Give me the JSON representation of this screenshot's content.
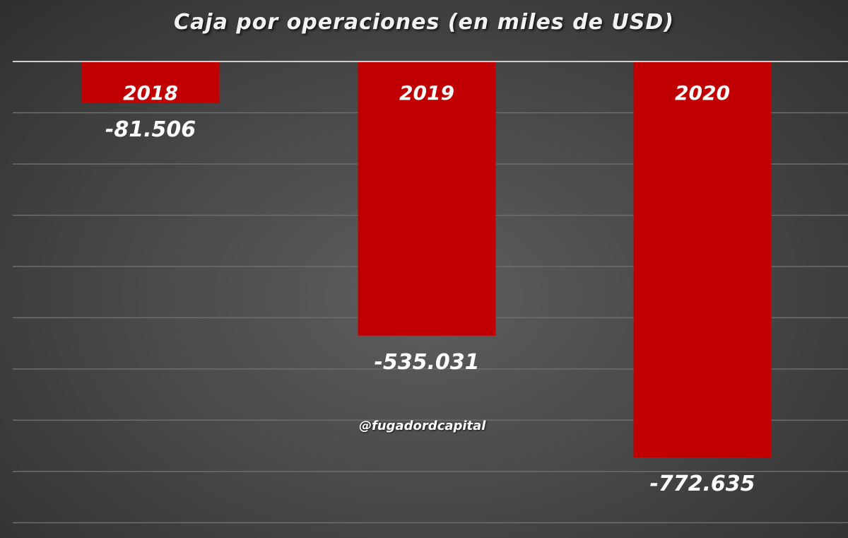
{
  "chart_data": {
    "type": "bar",
    "title": "Caja por operaciones (en miles de USD)",
    "categories": [
      "2018",
      "2019",
      "2020"
    ],
    "values": [
      -81506,
      -535031,
      -772635
    ],
    "value_labels": [
      "-81.506",
      "-535.031",
      "-772.635"
    ],
    "xlabel": "",
    "ylabel": "",
    "ylim": [
      -900000,
      0
    ],
    "grid": true,
    "legend": "none"
  },
  "watermark": "@fugadordcapital",
  "colors": {
    "bar": "#c00000",
    "gridline": "#6e6e6e",
    "axis": "#cfcfcf",
    "text": "#ffffff"
  }
}
